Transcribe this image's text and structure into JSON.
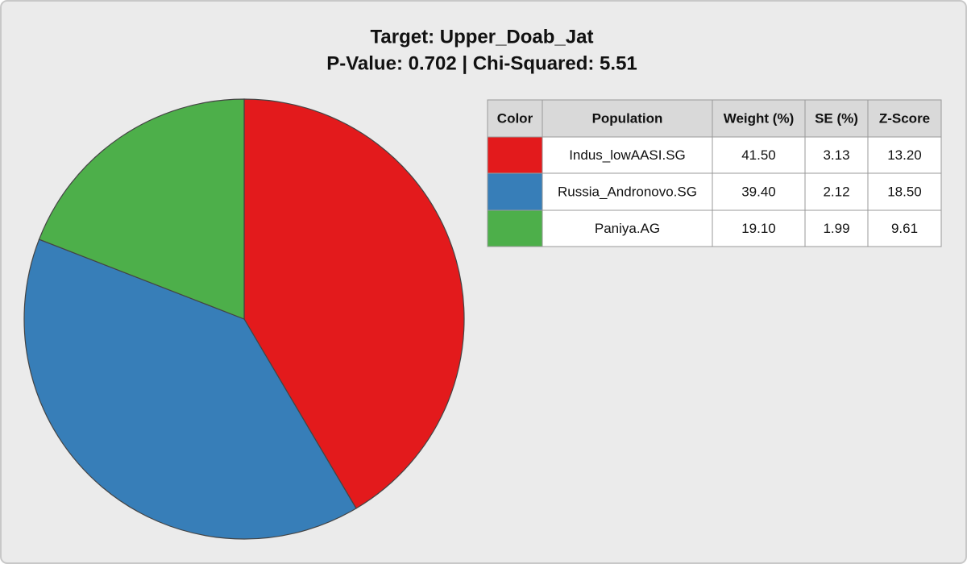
{
  "chart_data": {
    "type": "pie",
    "title": "Target: Upper_Doab_Jat",
    "subtitle": "P-Value: 0.702 | Chi-Squared: 5.51",
    "categories": [
      "Indus_lowAASI.SG",
      "Russia_Andronovo.SG",
      "Paniya.AG"
    ],
    "values": [
      41.5,
      39.4,
      19.1
    ],
    "value_labels": [
      "41.50",
      "39.40",
      "19.10"
    ],
    "colors": [
      "#e31a1c",
      "#377eb8",
      "#4daf4a"
    ],
    "table": {
      "columns": [
        "Color",
        "Population",
        "Weight (%)",
        "SE (%)",
        "Z-Score"
      ],
      "se": [
        "3.13",
        "2.12",
        "1.99"
      ],
      "z": [
        "13.20",
        "18.50",
        "9.61"
      ]
    }
  }
}
